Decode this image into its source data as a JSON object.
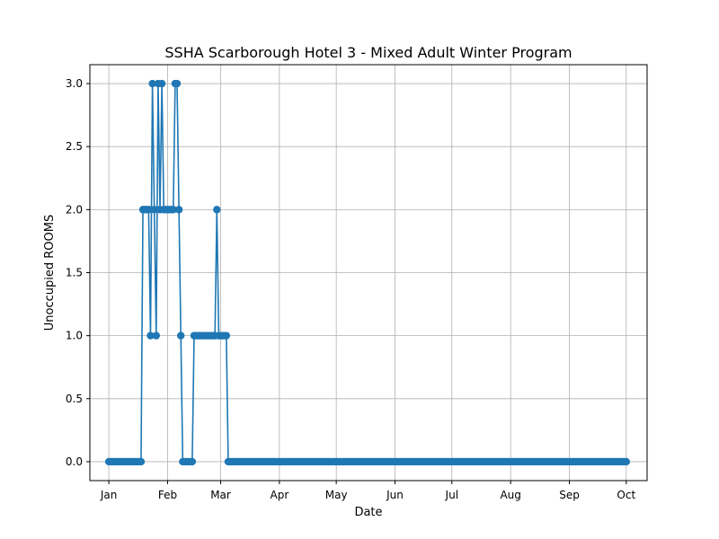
{
  "chart_data": {
    "type": "line",
    "title": "SSHA Scarborough Hotel 3 - Mixed Adult Winter Program",
    "xlabel": "Date",
    "ylabel": "Unoccupied ROOMS",
    "x_ticks": [
      "Jan",
      "Feb",
      "Mar",
      "Apr",
      "May",
      "Jun",
      "Jul",
      "Aug",
      "Sep",
      "Oct"
    ],
    "y_ticks": [
      "0.0",
      "0.5",
      "1.0",
      "1.5",
      "2.0",
      "2.5",
      "3.0"
    ],
    "ylim": [
      -0.15,
      3.15
    ],
    "xlim": [
      "2024-12-22",
      "2025-10-12"
    ],
    "grid": true,
    "marker": "circle",
    "color": "#1f77b4",
    "series": [
      {
        "x_start": "2025-01-01",
        "x_end": "2025-10-01",
        "segments": [
          {
            "from": "2025-01-01",
            "to": "2025-01-18",
            "value": 0
          },
          {
            "from": "2025-01-19",
            "to": "2025-01-22",
            "value": 2
          },
          {
            "from": "2025-01-23",
            "to": "2025-01-23",
            "value": 1
          },
          {
            "from": "2025-01-24",
            "to": "2025-01-24",
            "value": 3
          },
          {
            "from": "2025-01-25",
            "to": "2025-01-25",
            "value": 2
          },
          {
            "from": "2025-01-26",
            "to": "2025-01-26",
            "value": 1
          },
          {
            "from": "2025-01-27",
            "to": "2025-01-27",
            "value": 3
          },
          {
            "from": "2025-01-28",
            "to": "2025-01-28",
            "value": 2
          },
          {
            "from": "2025-01-29",
            "to": "2025-01-29",
            "value": 3
          },
          {
            "from": "2025-01-30",
            "to": "2025-02-04",
            "value": 2
          },
          {
            "from": "2025-02-05",
            "to": "2025-02-06",
            "value": 3
          },
          {
            "from": "2025-02-07",
            "to": "2025-02-07",
            "value": 2
          },
          {
            "from": "2025-02-08",
            "to": "2025-02-08",
            "value": 1
          },
          {
            "from": "2025-02-09",
            "to": "2025-02-14",
            "value": 0
          },
          {
            "from": "2025-02-15",
            "to": "2025-02-26",
            "value": 1
          },
          {
            "from": "2025-02-27",
            "to": "2025-02-27",
            "value": 2
          },
          {
            "from": "2025-02-28",
            "to": "2025-03-04",
            "value": 1
          },
          {
            "from": "2025-03-05",
            "to": "2025-10-01",
            "value": 0
          }
        ]
      }
    ]
  }
}
